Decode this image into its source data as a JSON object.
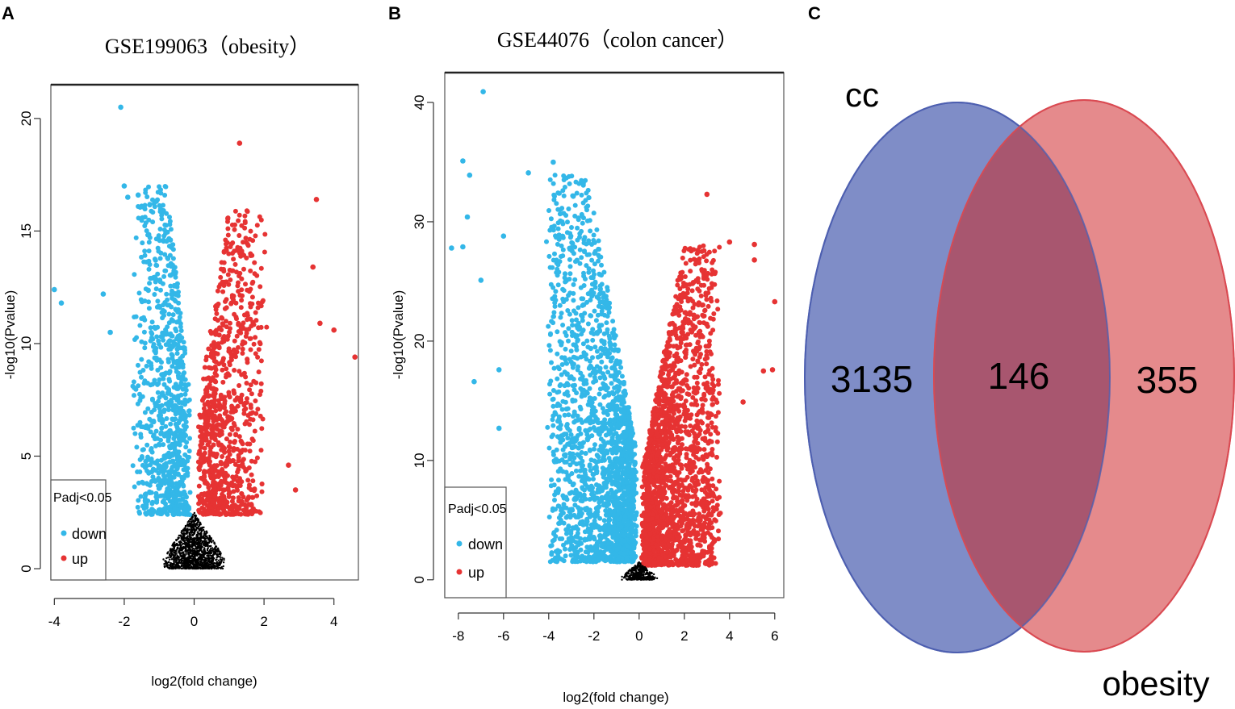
{
  "panels": {
    "a": {
      "label": "A",
      "title": "GSE199063（obesity）",
      "xlabel": "log2(fold change)",
      "ylabel": "-log10(Pvalue)",
      "xticks": [
        -4,
        -2,
        0,
        2,
        4
      ],
      "yticks": [
        0,
        5,
        10,
        15,
        20
      ],
      "legend": {
        "title": "Padj<0.05",
        "items": [
          "down",
          "up"
        ]
      }
    },
    "b": {
      "label": "B",
      "title": "GSE44076（colon cancer）",
      "xlabel": "log2(fold change)",
      "ylabel": "-log10(Pvalue)",
      "xticks": [
        -8,
        -6,
        -4,
        -2,
        0,
        2,
        4,
        6
      ],
      "yticks": [
        0,
        10,
        20,
        30,
        40
      ],
      "legend": {
        "title": "Padj<0.05",
        "items": [
          "down",
          "up"
        ]
      }
    },
    "c": {
      "label": "C",
      "set_left": "cc",
      "set_right": "obesity",
      "only_left": "3135",
      "overlap": "146",
      "only_right": "355"
    }
  },
  "colors": {
    "down": "#33b7e8",
    "up": "#e63333",
    "ns": "#000000",
    "venn_left": "#6b7bbf",
    "venn_right": "#e06468",
    "venn_left_stroke": "#4e5fb0",
    "venn_right_stroke": "#d94a52"
  },
  "chart_data": [
    {
      "type": "scatter",
      "title": "GSE199063（obesity）",
      "xlabel": "log2(fold change)",
      "ylabel": "-log10(Pvalue)",
      "xlim": [
        -4.1,
        4.7
      ],
      "ylim": [
        -0.5,
        21.5
      ],
      "legend_position": "bottom-left",
      "groups": [
        "down",
        "up",
        "ns"
      ],
      "highlights": {
        "down": [
          [
            -4,
            12.4
          ],
          [
            -3.8,
            11.8
          ],
          [
            -2.1,
            20.5
          ],
          [
            -2.0,
            17.0
          ],
          [
            -1.9,
            16.5
          ],
          [
            -1.6,
            16.6
          ],
          [
            -2.6,
            12.2
          ],
          [
            -2.4,
            10.5
          ]
        ],
        "up": [
          [
            1.3,
            18.9
          ],
          [
            3.5,
            16.4
          ],
          [
            4.6,
            9.4
          ],
          [
            4.0,
            10.6
          ],
          [
            3.6,
            10.9
          ],
          [
            2.9,
            3.5
          ],
          [
            2.7,
            4.6
          ],
          [
            3.4,
            13.4
          ]
        ]
      },
      "groups_params": [
        {
          "group": "down",
          "count": 900,
          "x_center": -0.7,
          "x_spread": 0.75,
          "y_max": 17,
          "y_min": 2.4,
          "seed": 11
        },
        {
          "group": "up",
          "count": 900,
          "x_center": 0.9,
          "x_spread": 0.95,
          "y_max": 16,
          "y_min": 2.4,
          "seed": 23
        },
        {
          "group": "ns",
          "count": 1500,
          "x_center": 0,
          "x_spread": 0.9,
          "y_max": 2.5,
          "y_min": 0,
          "seed": 37
        }
      ]
    },
    {
      "type": "scatter",
      "title": "GSE44076（colon cancer）",
      "xlabel": "log2(fold change)",
      "ylabel": "-log10(Pvalue)",
      "xlim": [
        -8.6,
        6.4
      ],
      "ylim": [
        -1.5,
        42.5
      ],
      "legend_position": "bottom-left",
      "groups": [
        "down",
        "up",
        "ns"
      ],
      "highlights": {
        "down": [
          [
            -6.9,
            40.9
          ],
          [
            -7.8,
            35.1
          ],
          [
            -7.5,
            33.9
          ],
          [
            -7.6,
            30.4
          ],
          [
            -8.3,
            27.8
          ],
          [
            -7.8,
            27.9
          ],
          [
            -7.0,
            25.1
          ],
          [
            -4.9,
            34.1
          ],
          [
            -3.8,
            35.0
          ],
          [
            -6.0,
            28.8
          ],
          [
            -7.3,
            16.6
          ],
          [
            -6.2,
            17.6
          ],
          [
            -6.2,
            12.7
          ]
        ],
        "up": [
          [
            3.0,
            32.3
          ],
          [
            5.1,
            28.1
          ],
          [
            4.0,
            28.3
          ],
          [
            5.1,
            26.8
          ],
          [
            6.0,
            23.3
          ],
          [
            5.9,
            17.6
          ],
          [
            5.5,
            17.5
          ],
          [
            4.6,
            14.9
          ]
        ]
      },
      "groups_params": [
        {
          "group": "down",
          "count": 2000,
          "x_center": -2.0,
          "x_spread": 2.2,
          "y_max": 34,
          "y_min": 1.5,
          "seed": 53
        },
        {
          "group": "up",
          "count": 2000,
          "x_center": 1.9,
          "x_spread": 1.9,
          "y_max": 28,
          "y_min": 1.2,
          "seed": 71
        },
        {
          "group": "ns",
          "count": 400,
          "x_center": 0,
          "x_spread": 0.8,
          "y_max": 1.5,
          "y_min": 0,
          "seed": 89
        }
      ]
    },
    {
      "type": "venn",
      "sets": [
        "cc",
        "obesity"
      ],
      "only_cc": 3135,
      "intersection": 146,
      "only_obesity": 355
    }
  ]
}
